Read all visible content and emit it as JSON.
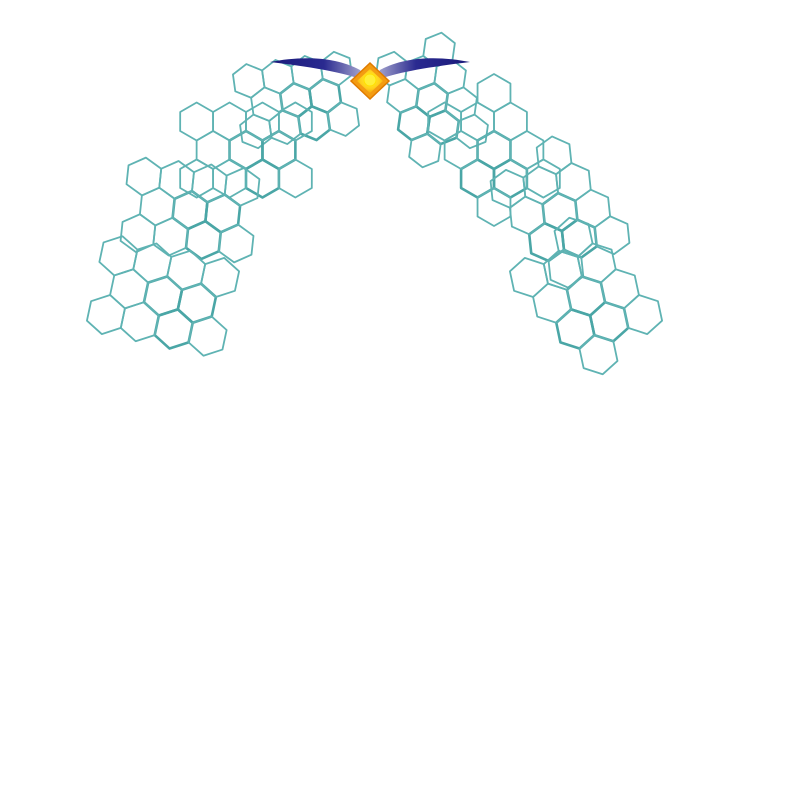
{
  "artwork": {
    "description_name": "honeycomb-arch-illustration",
    "colors": {
      "background": "#ffffff",
      "hex_stroke": "#5fb3b3",
      "hex_stroke_bold": "#4aa6a6",
      "wing_dark": "#1a1a7a",
      "wing_mid": "#3a3aa0",
      "wing_light": "#b8b8d8",
      "gem_outer": "#f39c12",
      "gem_inner": "#ffd21a",
      "gem_core": "#ffef3a"
    },
    "clusters": {
      "left_count": 4,
      "right_count": 4
    }
  }
}
